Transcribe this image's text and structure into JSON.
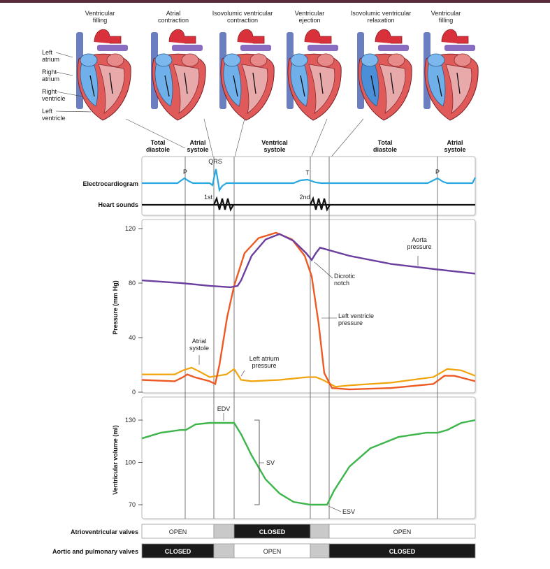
{
  "phases_top": [
    "Ventricular\nfilling",
    "Atrial\ncontraction",
    "Isovolumic ventricular\ncontraction",
    "Ventricular\nejection",
    "Isovolumic ventricular\nrelaxation",
    "Ventricular\nfilling"
  ],
  "heart_labels": [
    "Left\natrium",
    "Right\natrium",
    "Right\nventricle",
    "Left\nventricle"
  ],
  "period_labels": [
    "Total\ndiastole",
    "Atrial\nsystole",
    "Ventrical\nsystole",
    "Total\ndiastole",
    "Atrial\nsystole"
  ],
  "ecg": {
    "label": "Electrocardiogram",
    "p_label": "P",
    "qrs_label": "QRS",
    "t_label": "T",
    "p2_label": "P",
    "color": "#29a8e0"
  },
  "heart_sounds": {
    "label": "Heart sounds",
    "first": "1st",
    "second": "2nd"
  },
  "pressure": {
    "ylabel": "Pressure (mm Hg)",
    "ticks": [
      "120",
      "80",
      "40",
      "0"
    ],
    "tick_values": [
      120,
      80,
      40,
      0
    ],
    "ylim": [
      0,
      125
    ],
    "aorta_label": "Aorta\npressure",
    "dicrotic_label": "Dicrotic\nnotch",
    "lv_label": "Left ventricle\npressure",
    "la_label": "Left atrium\npressure",
    "atrial_systole_label": "Atrial\nsystole",
    "colors": {
      "aorta": "#6b3fa0",
      "lv": "#ee5a24",
      "la": "#f0a30a"
    }
  },
  "volume": {
    "ylabel": "Ventricular volume (ml)",
    "ticks": [
      "130",
      "100",
      "70"
    ],
    "tick_values": [
      130,
      100,
      70
    ],
    "ylim": [
      60,
      140
    ],
    "edv_label": "EDV",
    "sv_label": "SV",
    "esv_label": "ESV",
    "color": "#3db54a"
  },
  "valves": {
    "av_label": "Atrioventricular valves",
    "ap_label": "Aortic and pulmonary valves",
    "av_states": [
      "OPEN",
      "",
      "CLOSED",
      "",
      "OPEN"
    ],
    "ap_states": [
      "CLOSED",
      "",
      "OPEN",
      "",
      "CLOSED"
    ]
  }
}
